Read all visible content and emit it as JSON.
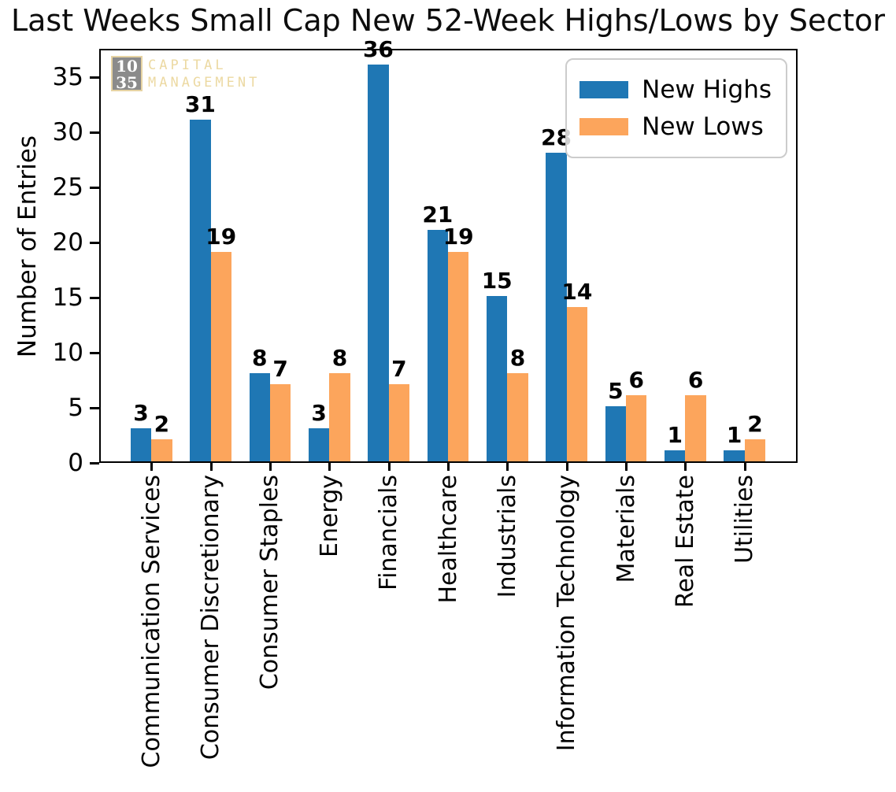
{
  "chart_data": {
    "type": "bar",
    "title": "Last Weeks Small Cap New 52-Week Highs/Lows by Sector",
    "ylabel": "Number of Entries",
    "xlabel": "",
    "categories": [
      "Communication Services",
      "Consumer Discretionary",
      "Consumer Staples",
      "Energy",
      "Financials",
      "Healthcare",
      "Industrials",
      "Information Technology",
      "Materials",
      "Real Estate",
      "Utilities"
    ],
    "series": [
      {
        "name": "New Highs",
        "color": "#1f77b4",
        "values": [
          3,
          31,
          8,
          3,
          36,
          21,
          15,
          28,
          5,
          1,
          1
        ]
      },
      {
        "name": "New Lows",
        "color": "#fca55c",
        "values": [
          2,
          19,
          7,
          8,
          7,
          19,
          8,
          14,
          6,
          6,
          2
        ]
      }
    ],
    "yticks": [
      0,
      5,
      10,
      15,
      20,
      25,
      30,
      35
    ],
    "ylim": [
      0,
      37.5
    ],
    "bar_width": 0.35,
    "value_labels": true,
    "grid": false,
    "legend_position": "upper right"
  },
  "watermark": {
    "number_top": "10",
    "number_bottom": "35",
    "label_top": "CAPITAL",
    "label_bottom": "MANAGEMENT",
    "box_color": "#8b8b8b",
    "border_color": "#e6d3a3",
    "text_color": "#ecd9a2"
  }
}
